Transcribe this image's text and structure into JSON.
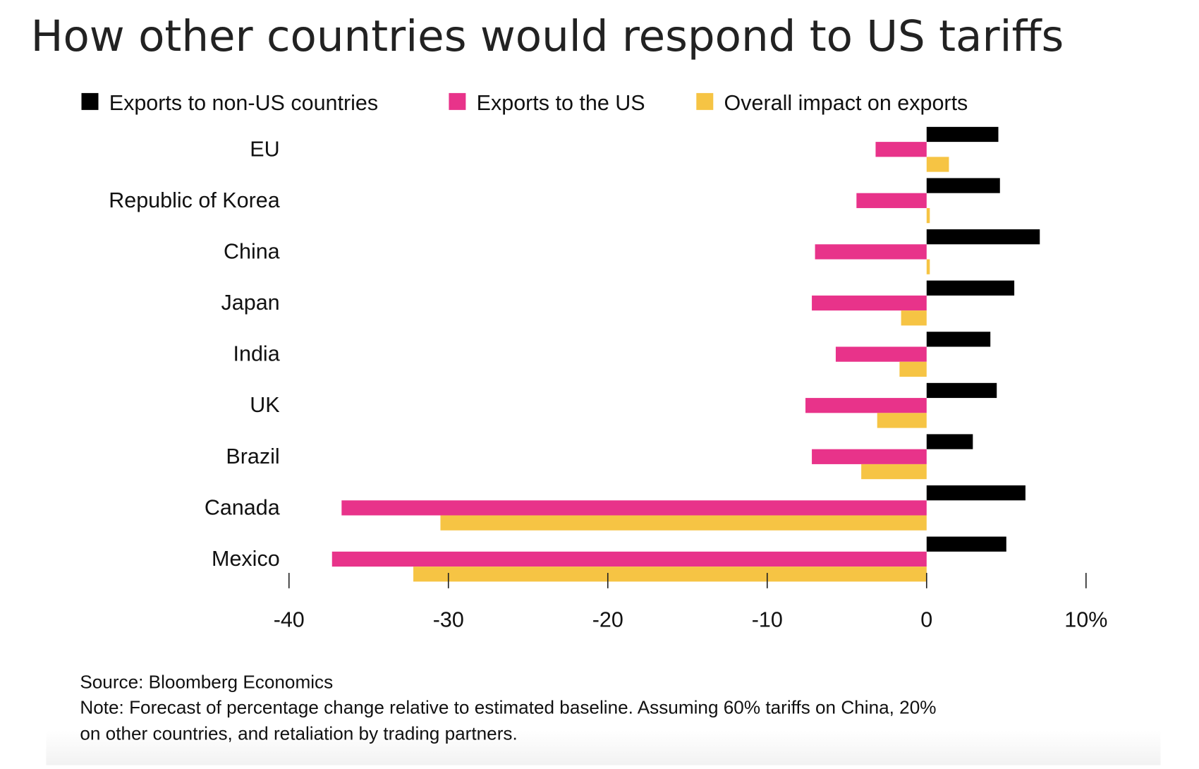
{
  "chart_data": {
    "type": "bar",
    "orientation": "horizontal",
    "title": "How other countries would respond to US tariffs",
    "categories": [
      "EU",
      "Republic of Korea",
      "China",
      "Japan",
      "India",
      "UK",
      "Brazil",
      "Canada",
      "Mexico"
    ],
    "series": [
      {
        "name": "Exports to non-US countries",
        "color": "#000000",
        "values": [
          4.5,
          4.6,
          7.1,
          5.5,
          4.0,
          4.4,
          2.9,
          6.2,
          5.0
        ]
      },
      {
        "name": "Exports to the US",
        "color": "#E8338A",
        "values": [
          -3.2,
          -4.4,
          -7.0,
          -7.2,
          -5.7,
          -7.6,
          -7.2,
          -36.7,
          -37.3
        ]
      },
      {
        "name": "Overall impact on exports",
        "color": "#F6C444",
        "values": [
          1.4,
          0.2,
          0.2,
          -1.6,
          -1.7,
          -3.1,
          -4.1,
          -30.5,
          -32.2
        ]
      }
    ],
    "xlim": [
      -40,
      10
    ],
    "xticks": [
      -40,
      -30,
      -20,
      -10,
      0,
      10
    ],
    "xtick_labels": [
      "-40",
      "-30",
      "-20",
      "-10",
      "0",
      "10%"
    ],
    "legend_position": "top",
    "grid": false,
    "source": "Source: Bloomberg Economics",
    "note_lines": [
      "Note: Forecast of percentage change relative to estimated baseline. Assuming 60% tariffs on China, 20%",
      "on other countries, and retaliation by trading partners."
    ]
  }
}
